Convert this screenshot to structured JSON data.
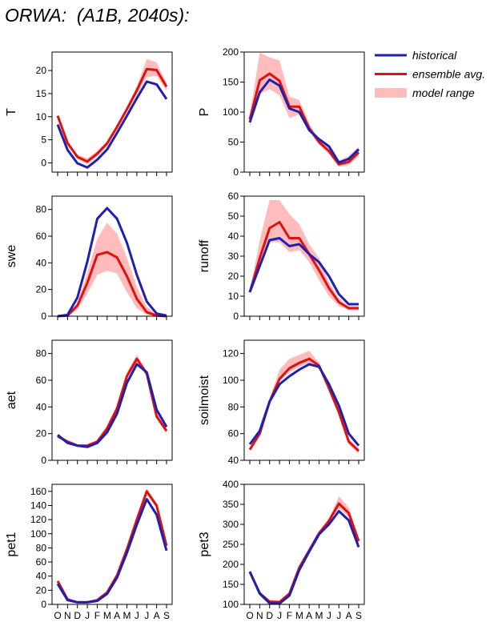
{
  "title": "ORWA:  (A1B, 2040s):",
  "months": [
    "O",
    "N",
    "D",
    "J",
    "F",
    "M",
    "A",
    "M",
    "J",
    "J",
    "A",
    "S"
  ],
  "legend": {
    "position": "top-right",
    "entries": [
      {
        "label": "historical",
        "color": "#1f1fb0",
        "kind": "line"
      },
      {
        "label": "ensemble avg.",
        "color": "#e01010",
        "kind": "line"
      },
      {
        "label": "model range",
        "color": "#ffbcbc",
        "kind": "band"
      }
    ]
  },
  "colors": {
    "historical": "#1f1fb0",
    "ensemble": "#e01010",
    "range": "#ffbcbc"
  },
  "chart_data": [
    {
      "type": "line",
      "ylabel": "T",
      "ylim": [
        -2,
        24
      ],
      "yticks": [
        "0",
        "5",
        "10",
        "15",
        "20"
      ],
      "ytick_values": [
        0,
        5,
        10,
        15,
        20
      ],
      "historical": [
        8.3,
        2.8,
        -0.1,
        -1.0,
        0.7,
        2.9,
        6.5,
        10.2,
        14.0,
        17.6,
        17.0,
        13.8
      ],
      "ensemble": [
        10.2,
        4.3,
        1.3,
        0.3,
        2.0,
        4.2,
        7.8,
        11.6,
        15.7,
        20.3,
        20.1,
        16.5
      ],
      "range_low": [
        9.8,
        3.9,
        0.8,
        -0.3,
        1.4,
        3.8,
        7.3,
        11.1,
        14.8,
        18.6,
        18.8,
        15.6
      ],
      "range_high": [
        10.6,
        4.7,
        1.8,
        1.0,
        2.6,
        4.7,
        8.3,
        12.1,
        16.6,
        22.5,
        21.8,
        17.2
      ]
    },
    {
      "type": "line",
      "ylabel": "P",
      "ylim": [
        0,
        200
      ],
      "yticks": [
        "0",
        "50",
        "100",
        "150",
        "200"
      ],
      "ytick_values": [
        0,
        50,
        100,
        150,
        200
      ],
      "historical": [
        83,
        133,
        154,
        144,
        106,
        100,
        70,
        55,
        43,
        16,
        22,
        38
      ],
      "ensemble": [
        88,
        153,
        164,
        152,
        109,
        109,
        73,
        50,
        35,
        13,
        17,
        33
      ],
      "range_low": [
        75,
        130,
        138,
        128,
        90,
        96,
        67,
        46,
        30,
        9,
        12,
        26
      ],
      "range_high": [
        95,
        199,
        191,
        186,
        126,
        120,
        81,
        54,
        42,
        19,
        27,
        42
      ]
    },
    {
      "type": "line",
      "ylabel": "swe",
      "ylim": [
        0,
        90
      ],
      "yticks": [
        "0",
        "20",
        "40",
        "60",
        "80"
      ],
      "ytick_values": [
        0,
        20,
        40,
        60,
        80
      ],
      "historical": [
        0,
        1,
        14,
        41,
        73,
        81,
        73,
        55,
        31,
        11,
        2,
        0.5
      ],
      "ensemble": [
        0,
        0.5,
        8,
        25,
        46,
        48,
        44,
        30,
        13,
        3,
        0.5,
        0
      ],
      "range_low": [
        0,
        0,
        5,
        17,
        31,
        34,
        32,
        18,
        6,
        1,
        0,
        0
      ],
      "range_high": [
        0,
        1,
        10,
        33,
        58,
        70,
        62,
        44,
        22,
        7,
        1,
        0
      ]
    },
    {
      "type": "line",
      "ylabel": "runoff",
      "ylim": [
        0,
        60
      ],
      "yticks": [
        "0",
        "10",
        "20",
        "30",
        "40",
        "50",
        "60"
      ],
      "ytick_values": [
        0,
        10,
        20,
        30,
        40,
        50,
        60
      ],
      "historical": [
        12,
        25,
        38,
        39,
        35,
        36,
        31,
        27,
        20,
        11,
        6,
        6
      ],
      "ensemble": [
        12,
        29,
        44,
        47,
        39,
        39,
        31,
        23,
        14,
        7,
        4,
        4
      ],
      "range_low": [
        12,
        26,
        37,
        37,
        32,
        33,
        27,
        18,
        10,
        5,
        3,
        3
      ],
      "range_high": [
        12,
        38,
        58,
        58,
        51,
        46,
        36,
        29,
        17,
        9,
        5,
        5
      ]
    },
    {
      "type": "line",
      "ylabel": "aet",
      "ylim": [
        0,
        90
      ],
      "yticks": [
        "0",
        "20",
        "40",
        "60",
        "80"
      ],
      "ytick_values": [
        0,
        20,
        40,
        60,
        80
      ],
      "historical": [
        19,
        13,
        11,
        10,
        13,
        21,
        35,
        58,
        72,
        66,
        38,
        25
      ],
      "ensemble": [
        18,
        14,
        11,
        11,
        14,
        24,
        39,
        63,
        76,
        65,
        33,
        22
      ],
      "range_low": [
        17,
        13,
        10,
        10,
        13,
        23,
        38,
        61,
        73,
        63,
        31,
        20
      ],
      "range_high": [
        19,
        15,
        12,
        12,
        15,
        25,
        40,
        66,
        79,
        67,
        35,
        24
      ]
    },
    {
      "type": "line",
      "ylabel": "soilmoist",
      "ylim": [
        40,
        130
      ],
      "yticks": [
        "40",
        "60",
        "80",
        "100",
        "120"
      ],
      "ytick_values": [
        40,
        60,
        80,
        100,
        120
      ],
      "historical": [
        52,
        62,
        84,
        97,
        103,
        108,
        112,
        110,
        97,
        81,
        60,
        51
      ],
      "ensemble": [
        48,
        60,
        84,
        101,
        109,
        113,
        116,
        111,
        94,
        76,
        54,
        47
      ],
      "range_low": [
        47,
        59,
        83,
        99,
        106,
        110,
        113,
        109,
        92,
        74,
        52,
        45
      ],
      "range_high": [
        49,
        61,
        86,
        108,
        116,
        119,
        122,
        113,
        96,
        78,
        56,
        49
      ]
    },
    {
      "type": "line",
      "ylabel": "pet1",
      "ylim": [
        0,
        170
      ],
      "yticks": [
        "0",
        "20",
        "40",
        "60",
        "80",
        "100",
        "120",
        "140",
        "160"
      ],
      "ytick_values": [
        0,
        20,
        40,
        60,
        80,
        100,
        120,
        140,
        160
      ],
      "historical": [
        29,
        6,
        3,
        3,
        5,
        15,
        38,
        73,
        113,
        149,
        127,
        76
      ],
      "ensemble": [
        33,
        7,
        3,
        3,
        6,
        17,
        41,
        78,
        120,
        160,
        140,
        83
      ],
      "range_low": [
        32,
        6,
        2,
        2,
        5,
        16,
        40,
        76,
        118,
        156,
        136,
        80
      ],
      "range_high": [
        34,
        7,
        4,
        4,
        7,
        18,
        42,
        80,
        123,
        164,
        143,
        86
      ]
    },
    {
      "type": "line",
      "ylabel": "pet3",
      "ylim": [
        100,
        400
      ],
      "yticks": [
        "100",
        "150",
        "200",
        "250",
        "300",
        "350",
        "400"
      ],
      "ytick_values": [
        100,
        150,
        200,
        250,
        300,
        350,
        400
      ],
      "historical": [
        182,
        127,
        103,
        102,
        122,
        186,
        232,
        275,
        300,
        333,
        310,
        243
      ],
      "ensemble": [
        181,
        128,
        107,
        106,
        127,
        192,
        235,
        278,
        309,
        352,
        328,
        258
      ],
      "range_low": [
        180,
        127,
        105,
        104,
        124,
        189,
        233,
        276,
        305,
        340,
        318,
        250
      ],
      "range_high": [
        183,
        129,
        109,
        108,
        130,
        195,
        237,
        281,
        314,
        370,
        342,
        266
      ]
    }
  ]
}
